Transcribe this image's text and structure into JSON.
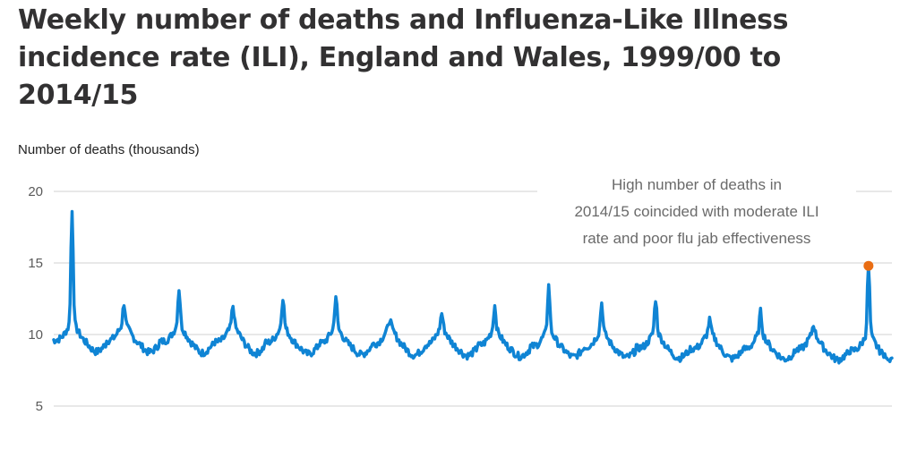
{
  "title": "Weekly number of deaths and Influenza-Like Illness incidence rate (ILI), England and Wales, 1999/00 to 2014/15",
  "colors": {
    "series": "#0f84d4",
    "highlight": "#e96d13",
    "gridline": "#d0d0d0",
    "text": "#323132"
  },
  "chart_data": {
    "type": "line",
    "ylabel": "Number of deaths (thousands)",
    "xlabel": "",
    "ylim": [
      5,
      20
    ],
    "yticks": [
      20,
      15,
      10,
      5
    ],
    "grid": true,
    "x_start_season": "1999/00",
    "x_end_season": "2014/15",
    "seasons": [
      {
        "peak": 18.6
      },
      {
        "peak": 12.2
      },
      {
        "peak": 13.2
      },
      {
        "peak": 12.0
      },
      {
        "peak": 12.6
      },
      {
        "peak": 12.7
      },
      {
        "peak": 11.1
      },
      {
        "peak": 11.5
      },
      {
        "peak": 12.0
      },
      {
        "peak": 13.4
      },
      {
        "peak": 12.2
      },
      {
        "peak": 12.5
      },
      {
        "peak": 11.0
      },
      {
        "peak": 11.6
      },
      {
        "peak": 10.7
      },
      {
        "peak": 14.8
      }
    ],
    "highlight_point": {
      "season": "2014/15",
      "value": 14.8
    },
    "annotation": [
      "High number of deaths in",
      "2014/15 coincided with moderate ILI",
      "rate and poor flu jab effectiveness"
    ]
  }
}
